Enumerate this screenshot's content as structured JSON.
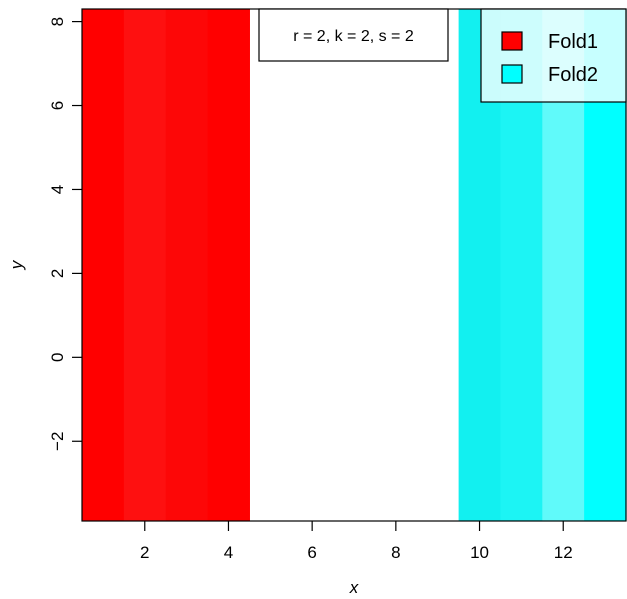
{
  "chart_data": {
    "type": "heatmap",
    "title": "",
    "xlabel": "x",
    "ylabel": "y",
    "xlim": [
      0.5,
      13.5
    ],
    "ylim": [
      -3.9,
      8.3
    ],
    "x_ticks": [
      2,
      4,
      6,
      8,
      10,
      12
    ],
    "y_ticks": [
      -2,
      0,
      2,
      4,
      6,
      8
    ],
    "annotation": "r = 2, k = 2, s = 2",
    "legend": {
      "placement": "top-right",
      "entries": [
        {
          "name": "Fold1",
          "color": "#ff0000"
        },
        {
          "name": "Fold2",
          "color": "#00ffff"
        }
      ]
    },
    "cells": [
      {
        "x": 1,
        "fold": "Fold1",
        "color": "#ff0000"
      },
      {
        "x": 2,
        "fold": "Fold1",
        "color": "#fe1010"
      },
      {
        "x": 3,
        "fold": "Fold1",
        "color": "#fd0707"
      },
      {
        "x": 4,
        "fold": "Fold1",
        "color": "#ff0000"
      },
      {
        "x": 10,
        "fold": "Fold2",
        "color": "#12f0f0"
      },
      {
        "x": 11,
        "fold": "Fold2",
        "color": "#1cf4f4"
      },
      {
        "x": 12,
        "fold": "Fold2",
        "color": "#60fafa"
      },
      {
        "x": 13,
        "fold": "Fold2",
        "color": "#00ffff"
      }
    ]
  }
}
